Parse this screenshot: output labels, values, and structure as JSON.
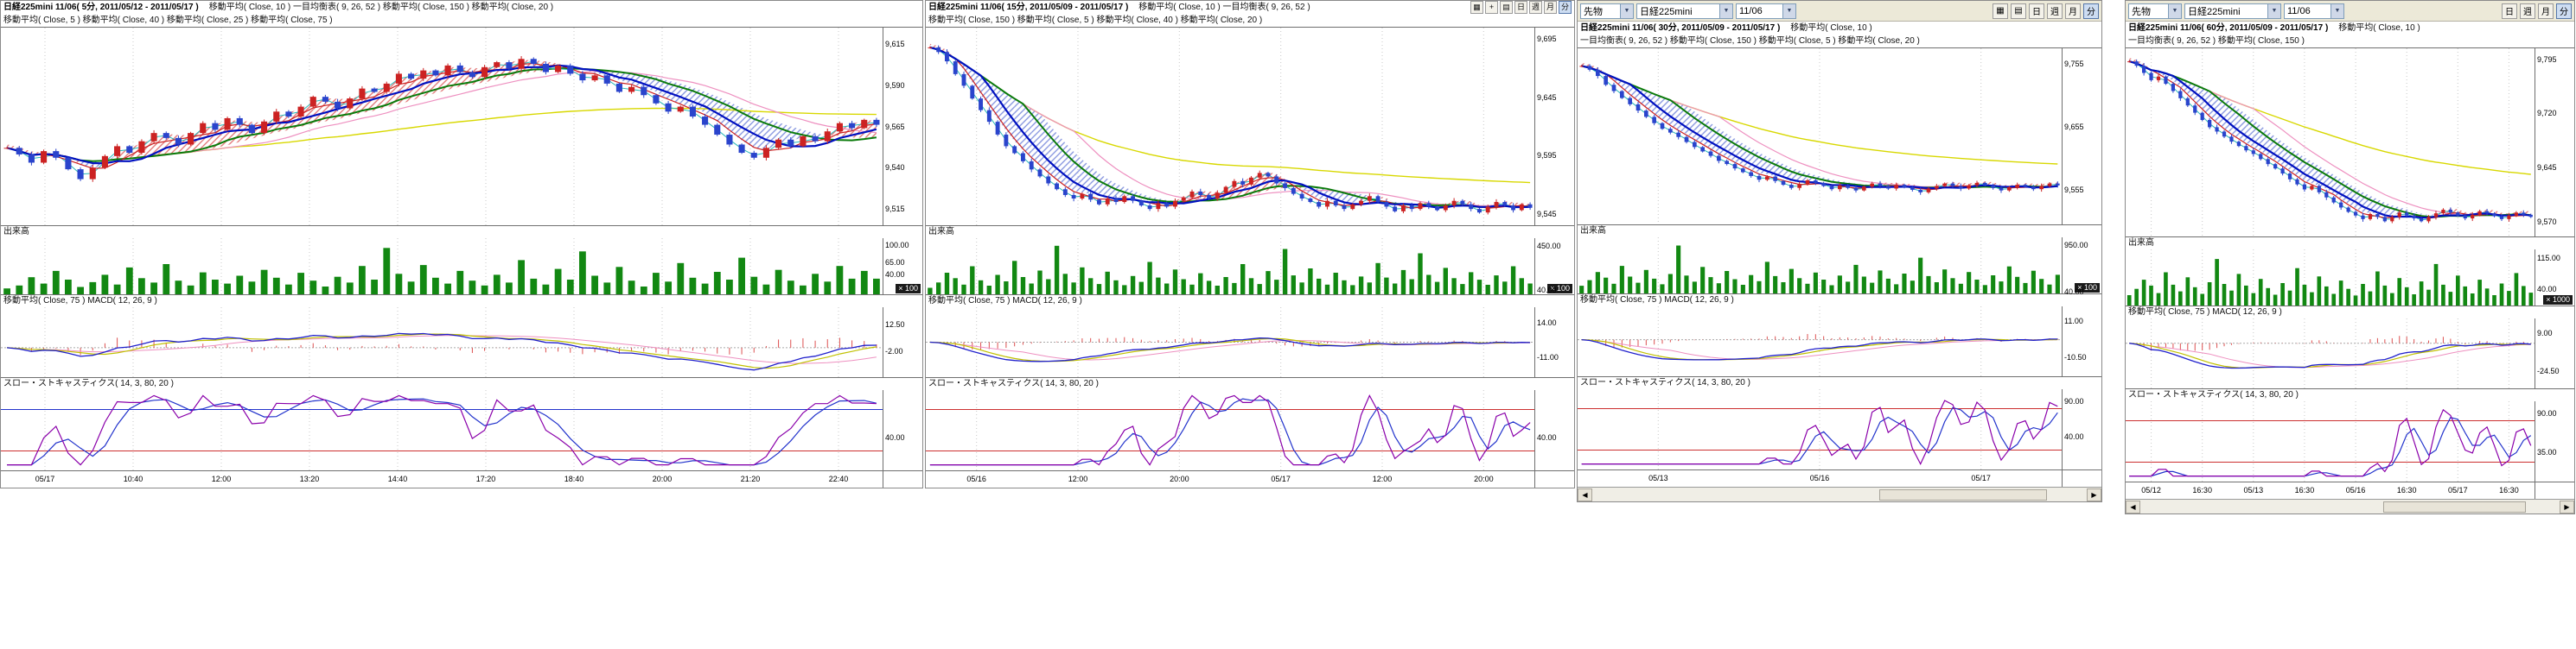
{
  "colors": {
    "up_candle": "#cc2222",
    "down_candle": "#2a44cc",
    "volume_bar": "#128812",
    "ma_cyan": "#2ab8b8",
    "ma_red": "#cc2020",
    "ma_blue": "#0010c0",
    "ma_green": "#0a7a0a",
    "ma_pink": "#ee90c0",
    "ma_yellow": "#d8d800",
    "cloud_bull": "#e07070",
    "cloud_bear": "#8090dd",
    "macd_line": "#2020cc",
    "macd_signal": "#c0c000",
    "macd_hist": "#dd5050",
    "macd_aux": "#ee90c0",
    "stoch_k": "#8a00aa",
    "stoch_d": "#2233cc",
    "stoch_level": "#cc3030",
    "grid": "#c8c8c8"
  },
  "icons": {
    "chevron_down": "▼",
    "scroll_left": "◀",
    "scroll_right": "▶",
    "chart_grid": "▦",
    "crosshair": "+",
    "print": "▤"
  },
  "windows": [
    {
      "legend1": "移動平均( Close, 10 )    一目均衡表( 9, 26, 52 )    移動平均( Close, 150 )    移動平均( Close, 20 )",
      "legend2": "移動平均( Close, 5 )    移動平均( Close, 40 )    移動平均( Close, 25 )    移動平均( Close, 75 )",
      "volume_label": "出来高",
      "macd_label": "移動平均( Close, 75 )      MACD( 12, 26, 9 )",
      "stoch_label": "スロー・ストキャスティクス( 14, 3, 80, 20 )"
    },
    {
      "legend1": "移動平均( Close, 10 )    一目均衡表( 9, 26, 52 )",
      "legend2": "移動平均( Close, 150 )    移動平均( Close, 5 )    移動平均( Close, 40 )    移動平均( Close, 20 )",
      "volume_label": "出来高",
      "macd_label": "移動平均( Close, 75 )      MACD( 12, 26, 9 )",
      "stoch_label": "スロー・ストキャスティクス( 14, 3, 80, 20 )",
      "toolbar": {
        "periods": [
          "日",
          "週",
          "月",
          "分"
        ]
      }
    },
    {
      "legend1": "移動平均( Close, 10 )",
      "legend2": "一目均衡表( 9, 26, 52 )    移動平均( Close, 150 )    移動平均( Close, 5 )    移動平均( Close, 20 )",
      "volume_label": "出来高",
      "macd_label": "移動平均( Close, 75 )      MACD( 12, 26, 9 )",
      "stoch_label": "スロー・ストキャスティクス( 14, 3, 80, 20 )",
      "toolbar": {
        "category": "先物",
        "symbol": "日経225mini",
        "contract": "11/06",
        "periods": [
          "日",
          "週",
          "月",
          "分"
        ]
      }
    },
    {
      "legend1": "移動平均( Close, 10 )",
      "legend2": "一目均衡表( 9, 26, 52 )    移動平均( Close, 150 )",
      "volume_label": "出来高",
      "macd_label": "移動平均( Close, 75 )      MACD( 12, 26, 9 )",
      "stoch_label": "スロー・ストキャスティクス( 14, 3, 80, 20 )",
      "toolbar": {
        "category": "先物",
        "symbol": "日経225mini",
        "contract": "11/06",
        "periods": [
          "日",
          "週",
          "月",
          "分"
        ]
      }
    }
  ],
  "chart_data": [
    {
      "type": "candlestick",
      "symbol": "日経225mini 11/06",
      "timeframe": "5分",
      "title": "日経225mini 11/06( 5分, 2011/05/12 - 2011/05/17 )",
      "date_range": "2011/05/12 - 2011/05/17",
      "indicators": [
        "移動平均(Close,10)",
        "一目均衡表(9,26,52)",
        "移動平均(Close,150)",
        "移動平均(Close,20)",
        "移動平均(Close,5)",
        "移動平均(Close,40)",
        "移動平均(Close,25)",
        "移動平均(Close,75)",
        "出来高",
        "MACD(12,26,9)",
        "スロー・ストキャスティクス(14,3,80,20)"
      ],
      "closes": [
        9552,
        9548,
        9543,
        9550,
        9546,
        9539,
        9533,
        9540,
        9547,
        9553,
        9549,
        9556,
        9561,
        9558,
        9554,
        9561,
        9567,
        9563,
        9570,
        9566,
        9561,
        9568,
        9574,
        9571,
        9577,
        9583,
        9580,
        9576,
        9582,
        9588,
        9586,
        9591,
        9597,
        9594,
        9599,
        9596,
        9602,
        9598,
        9595,
        9601,
        9604,
        9600,
        9606,
        9603,
        9598,
        9602,
        9597,
        9593,
        9596,
        9591,
        9586,
        9589,
        9584,
        9579,
        9574,
        9577,
        9571,
        9566,
        9560,
        9554,
        9549,
        9546,
        9552,
        9557,
        9553,
        9559,
        9556,
        9562,
        9567,
        9564,
        9569,
        9566
      ],
      "volumes": [
        12,
        18,
        35,
        22,
        48,
        30,
        15,
        25,
        40,
        20,
        55,
        33,
        24,
        62,
        28,
        18,
        45,
        30,
        22,
        38,
        26,
        50,
        34,
        20,
        44,
        28,
        16,
        36,
        24,
        58,
        30,
        95,
        42,
        26,
        60,
        34,
        22,
        48,
        28,
        18,
        40,
        24,
        70,
        32,
        20,
        52,
        30,
        88,
        38,
        24,
        56,
        28,
        16,
        44,
        26,
        64,
        34,
        22,
        46,
        30,
        75,
        36,
        20,
        50,
        28,
        18,
        42,
        26,
        58,
        32,
        48,
        32
      ],
      "price_range": [
        9505,
        9625
      ],
      "price_ticks": [
        "9,615",
        "9,590",
        "9,565",
        "9,540",
        "9,515"
      ],
      "vol_range": [
        0,
        115
      ],
      "vol_ticks": [
        "100.00",
        "65.00",
        "40.00"
      ],
      "vol_unit": "× 100",
      "macd_range": [
        -16,
        22
      ],
      "macd_ticks": [
        "12.50",
        "-2.00"
      ],
      "stoch_ticks": [
        "40.00"
      ],
      "time_labels": [
        "05/17",
        "10:40",
        "12:00",
        "13:20",
        "14:40",
        "17:20",
        "18:40",
        "20:00",
        "21:20",
        "22:40"
      ]
    },
    {
      "type": "candlestick",
      "symbol": "日経225mini 11/06",
      "timeframe": "15分",
      "title": "日経225mini 11/06( 15分, 2011/05/09 - 2011/05/17 )",
      "date_range": "2011/05/09 - 2011/05/17",
      "indicators": [
        "移動平均(Close,10)",
        "一目均衡表(9,26,52)",
        "移動平均(Close,150)",
        "移動平均(Close,5)",
        "移動平均(Close,40)",
        "移動平均(Close,20)",
        "出来高",
        "MACD(12,26,9)",
        "スロー・ストキャスティクス(14,3,80,20)"
      ],
      "closes": [
        9688,
        9684,
        9676,
        9665,
        9655,
        9644,
        9634,
        9624,
        9613,
        9603,
        9597,
        9590,
        9583,
        9577,
        9571,
        9566,
        9561,
        9558,
        9562,
        9557,
        9553,
        9558,
        9555,
        9560,
        9556,
        9552,
        9549,
        9554,
        9551,
        9556,
        9559,
        9564,
        9561,
        9558,
        9563,
        9568,
        9573,
        9570,
        9576,
        9580,
        9577,
        9571,
        9567,
        9562,
        9558,
        9555,
        9551,
        9556,
        9552,
        9549,
        9553,
        9556,
        9560,
        9555,
        9551,
        9547,
        9552,
        9549,
        9554,
        9551,
        9548,
        9552,
        9556,
        9553,
        9549,
        9546,
        9551,
        9555,
        9552,
        9548,
        9553,
        9550
      ],
      "volumes": [
        60,
        110,
        200,
        150,
        90,
        260,
        130,
        80,
        180,
        120,
        310,
        160,
        100,
        220,
        140,
        450,
        190,
        110,
        250,
        150,
        95,
        210,
        130,
        85,
        170,
        115,
        300,
        155,
        100,
        230,
        140,
        90,
        195,
        125,
        80,
        160,
        105,
        280,
        150,
        95,
        215,
        135,
        420,
        175,
        110,
        240,
        145,
        90,
        200,
        130,
        85,
        165,
        110,
        290,
        155,
        100,
        225,
        140,
        380,
        180,
        115,
        245,
        150,
        95,
        205,
        135,
        88,
        175,
        118,
        260,
        150,
        100
      ],
      "price_range": [
        9535,
        9705
      ],
      "price_ticks": [
        "9,695",
        "9,645",
        "9,595",
        "9,545"
      ],
      "vol_range": [
        0,
        520
      ],
      "vol_ticks": [
        "450.00",
        "40.00"
      ],
      "vol_unit": "× 100",
      "macd_range": [
        -25,
        25
      ],
      "macd_ticks": [
        "14.00",
        "-11.00"
      ],
      "stoch_ticks": [
        "40.00"
      ],
      "time_labels": [
        "05/16",
        "12:00",
        "20:00",
        "05/17",
        "12:00",
        "20:00"
      ]
    },
    {
      "type": "candlestick",
      "symbol": "日経225mini 11/06",
      "timeframe": "30分",
      "title": "日経225mini 11/06( 30分, 2011/05/09 - 2011/05/17 )",
      "date_range": "2011/05/09 - 2011/05/17",
      "indicators": [
        "移動平均(Close,10)",
        "一目均衡表(9,26,52)",
        "移動平均(Close,150)",
        "移動平均(Close,5)",
        "移動平均(Close,20)",
        "出来高",
        "MACD(12,26,9)",
        "スロー・ストキャスティクス(14,3,80,20)"
      ],
      "closes": [
        9752,
        9746,
        9736,
        9722,
        9712,
        9701,
        9691,
        9681,
        9671,
        9661,
        9652,
        9646,
        9639,
        9631,
        9623,
        9616,
        9609,
        9601,
        9596,
        9589,
        9583,
        9577,
        9571,
        9576,
        9569,
        9563,
        9558,
        9564,
        9570,
        9566,
        9561,
        9556,
        9562,
        9558,
        9554,
        9560,
        9565,
        9561,
        9557,
        9563,
        9559,
        9555,
        9551,
        9557,
        9561,
        9565,
        9561,
        9557,
        9562,
        9566,
        9562,
        9558,
        9554,
        9559,
        9563,
        9560,
        9556,
        9561,
        9565,
        9562
      ],
      "volumes": [
        150,
        260,
        420,
        310,
        190,
        540,
        330,
        210,
        460,
        290,
        180,
        380,
        940,
        350,
        230,
        520,
        320,
        200,
        440,
        280,
        170,
        360,
        240,
        620,
        340,
        220,
        480,
        300,
        190,
        410,
        270,
        160,
        350,
        230,
        560,
        330,
        210,
        450,
        290,
        180,
        390,
        250,
        700,
        340,
        220,
        470,
        300,
        190,
        420,
        270,
        165,
        355,
        235,
        530,
        325,
        205,
        445,
        285,
        175,
        365
      ],
      "price_range": [
        9500,
        9780
      ],
      "price_ticks": [
        "9,755",
        "9,655",
        "9,555"
      ],
      "vol_range": [
        0,
        1100
      ],
      "vol_ticks": [
        "950.00",
        "40.00"
      ],
      "vol_unit": "× 100",
      "macd_range": [
        -22,
        20
      ],
      "macd_ticks": [
        "11.00",
        "-10.50"
      ],
      "stoch_ticks": [
        "90.00",
        "40.00"
      ],
      "time_labels": [
        "05/13",
        "05/16",
        "05/17"
      ]
    },
    {
      "type": "candlestick",
      "symbol": "日経225mini 11/06",
      "timeframe": "60分",
      "title": "日経225mini 11/06( 60分, 2011/05/09 - 2011/05/17 )",
      "date_range": "2011/05/09 - 2011/05/17",
      "indicators": [
        "移動平均(Close,10)",
        "一目均衡表(9,26,52)",
        "移動平均(Close,150)",
        "出来高",
        "MACD(12,26,9)",
        "スロー・ストキャスティクス(14,3,80,20)"
      ],
      "closes": [
        9792,
        9786,
        9776,
        9766,
        9771,
        9761,
        9751,
        9741,
        9731,
        9721,
        9711,
        9701,
        9695,
        9688,
        9681,
        9675,
        9669,
        9664,
        9657,
        9650,
        9644,
        9637,
        9629,
        9622,
        9615,
        9620,
        9611,
        9604,
        9597,
        9590,
        9584,
        9579,
        9574,
        9581,
        9577,
        9571,
        9577,
        9583,
        9579,
        9575,
        9571,
        9577,
        9582,
        9587,
        9583,
        9579,
        9575,
        9580,
        9585,
        9582,
        9578,
        9574,
        9579,
        9583,
        9580,
        9577
      ],
      "volumes": [
        25,
        40,
        62,
        48,
        30,
        80,
        50,
        34,
        68,
        44,
        28,
        56,
        112,
        52,
        36,
        76,
        48,
        30,
        64,
        42,
        26,
        54,
        36,
        90,
        50,
        32,
        70,
        46,
        28,
        60,
        40,
        24,
        52,
        34,
        82,
        48,
        30,
        66,
        44,
        27,
        58,
        38,
        100,
        50,
        33,
        72,
        46,
        29,
        62,
        41,
        25,
        53,
        35,
        78,
        47,
        31
      ],
      "price_range": [
        9550,
        9810
      ],
      "price_ticks": [
        "9,795",
        "9,720",
        "9,645",
        "9,570"
      ],
      "vol_range": [
        0,
        135
      ],
      "vol_ticks": [
        "115.00",
        "40.00"
      ],
      "vol_unit": "× 1000",
      "macd_range": [
        -40,
        22
      ],
      "macd_ticks": [
        "9.00",
        "-24.50"
      ],
      "stoch_ticks": [
        "90.00",
        "35.00"
      ],
      "time_labels": [
        "05/12",
        "16:30",
        "05/13",
        "16:30",
        "05/16",
        "16:30",
        "05/17",
        "16:30"
      ]
    }
  ]
}
